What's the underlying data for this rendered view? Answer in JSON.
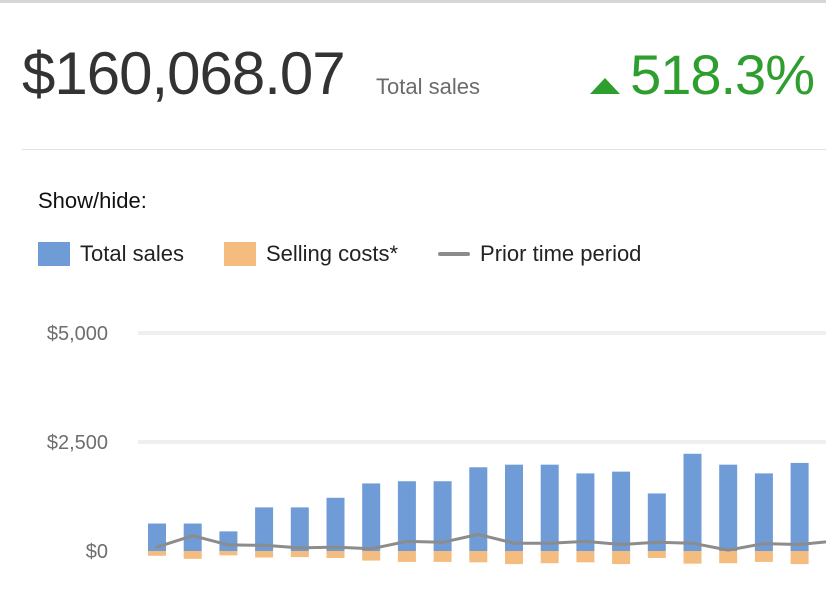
{
  "summary": {
    "total_amount": "$160,068.07",
    "total_label": "Total sales",
    "change_value": "518.3%",
    "change_direction": "up",
    "change_color": "#2e9e2e"
  },
  "show_hide_label": "Show/hide:",
  "legend": [
    {
      "name": "Total sales",
      "color": "#6f9bd6",
      "kind": "bar"
    },
    {
      "name": "Selling costs*",
      "color": "#f5bc80",
      "kind": "bar"
    },
    {
      "name": "Prior time period",
      "color": "#8c8c8c",
      "kind": "line"
    }
  ],
  "chart_data": {
    "type": "bar",
    "ylim": [
      0,
      5000
    ],
    "yticks": [
      0,
      2500,
      5000
    ],
    "ytick_labels": [
      "$0",
      "$2,500",
      "$5,000"
    ],
    "grid": true,
    "legend_position": "top-left",
    "series": [
      {
        "name": "Total sales",
        "values": [
          630,
          630,
          450,
          1000,
          1000,
          1220,
          1550,
          1600,
          1600,
          1920,
          1980,
          1980,
          1780,
          1820,
          1320,
          2230,
          1980,
          1780,
          2020
        ]
      },
      {
        "name": "Selling costs*",
        "values": [
          -110,
          -180,
          -100,
          -150,
          -140,
          -160,
          -220,
          -250,
          -250,
          -260,
          -300,
          -280,
          -260,
          -300,
          -160,
          -290,
          -280,
          -250,
          -300
        ]
      },
      {
        "name": "Prior time period",
        "values": [
          90,
          350,
          140,
          130,
          70,
          90,
          50,
          220,
          200,
          380,
          180,
          180,
          220,
          150,
          200,
          180,
          20,
          170,
          150,
          230
        ]
      }
    ]
  }
}
